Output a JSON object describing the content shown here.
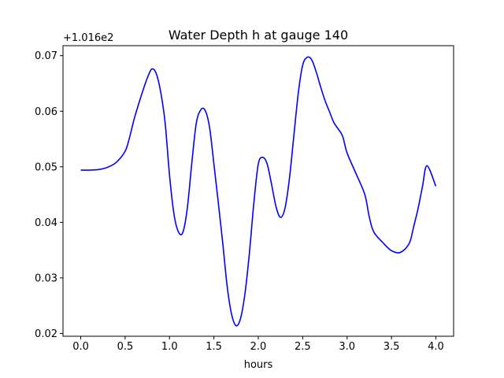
{
  "chart_data": {
    "type": "line",
    "title": "Water Depth h at gauge 140",
    "xlabel": "hours",
    "ylabel": "",
    "y_offset_label": "+1.016e2",
    "xlim": [
      -0.2,
      4.2
    ],
    "ylim": [
      0.0195,
      0.0718
    ],
    "x_ticks": [
      0.0,
      0.5,
      1.0,
      1.5,
      2.0,
      2.5,
      3.0,
      3.5,
      4.0
    ],
    "x_tick_labels": [
      "0.0",
      "0.5",
      "1.0",
      "1.5",
      "2.0",
      "2.5",
      "3.0",
      "3.5",
      "4.0"
    ],
    "y_ticks": [
      0.02,
      0.03,
      0.04,
      0.05,
      0.06,
      0.07
    ],
    "y_tick_labels": [
      "0.02",
      "0.03",
      "0.04",
      "0.05",
      "0.06",
      "0.07"
    ],
    "grid": false,
    "series": [
      {
        "color": "#0000ff",
        "x": [
          0.0,
          0.1,
          0.2,
          0.3,
          0.4,
          0.5,
          0.55,
          0.6,
          0.65,
          0.7,
          0.75,
          0.8,
          0.85,
          0.9,
          0.95,
          1.0,
          1.05,
          1.1,
          1.15,
          1.2,
          1.25,
          1.3,
          1.35,
          1.4,
          1.45,
          1.5,
          1.55,
          1.6,
          1.65,
          1.7,
          1.75,
          1.8,
          1.85,
          1.9,
          1.95,
          2.0,
          2.05,
          2.1,
          2.15,
          2.2,
          2.25,
          2.3,
          2.35,
          2.4,
          2.45,
          2.5,
          2.55,
          2.6,
          2.65,
          2.7,
          2.75,
          2.8,
          2.85,
          2.9,
          2.95,
          3.0,
          3.1,
          3.2,
          3.25,
          3.3,
          3.4,
          3.5,
          3.6,
          3.7,
          3.75,
          3.8,
          3.85,
          3.9,
          4.0
        ],
        "y": [
          0.0494,
          0.0494,
          0.0495,
          0.0499,
          0.0508,
          0.0528,
          0.0553,
          0.0585,
          0.0612,
          0.0637,
          0.066,
          0.0676,
          0.0668,
          0.0635,
          0.058,
          0.0485,
          0.0415,
          0.0383,
          0.0382,
          0.0425,
          0.0505,
          0.0577,
          0.0602,
          0.0602,
          0.0572,
          0.0505,
          0.0435,
          0.0362,
          0.0284,
          0.0234,
          0.0214,
          0.0227,
          0.0272,
          0.0345,
          0.0435,
          0.0505,
          0.0517,
          0.0505,
          0.0468,
          0.0428,
          0.0409,
          0.0425,
          0.0478,
          0.0555,
          0.0632,
          0.0683,
          0.0697,
          0.0693,
          0.0672,
          0.0645,
          0.062,
          0.06,
          0.058,
          0.0568,
          0.0555,
          0.0525,
          0.0488,
          0.045,
          0.041,
          0.0383,
          0.0364,
          0.0349,
          0.0346,
          0.0362,
          0.0392,
          0.0425,
          0.0465,
          0.0502,
          0.0465
        ]
      }
    ]
  }
}
